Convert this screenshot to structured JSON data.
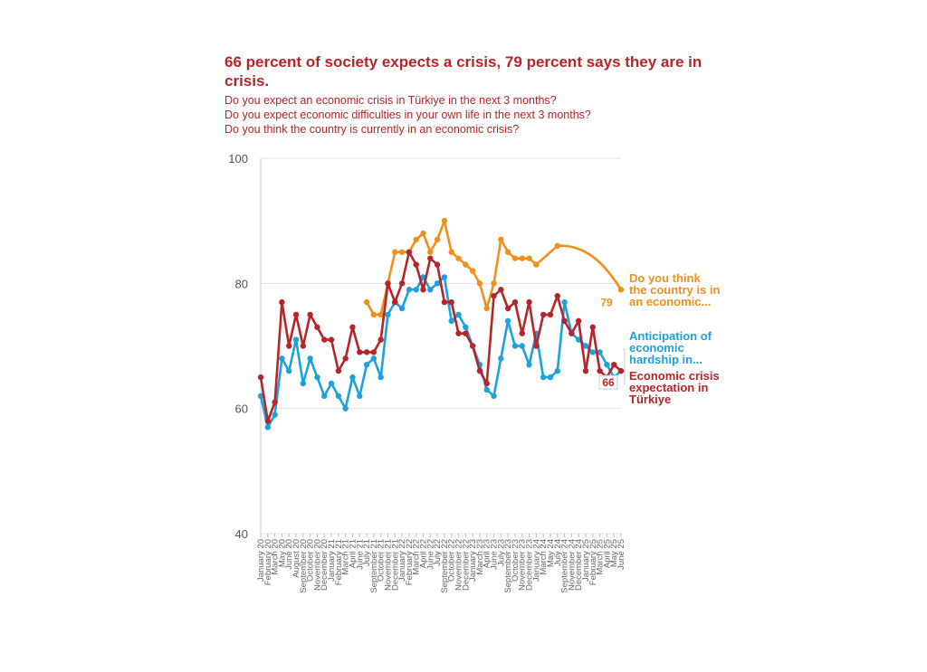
{
  "chart_data": {
    "type": "line",
    "title": "66 percent of society expects a crisis, 79 percent says they are in crisis.",
    "subtitle_lines": [
      "Do you expect an economic crisis in Türkiye in the next 3 months?",
      "Do you expect economic difficulties in your own life in the next 3 months?",
      "Do you think the country is currently in an economic crisis?"
    ],
    "ylim": [
      40,
      100
    ],
    "yticks": [
      "40",
      "60",
      "80",
      "100"
    ],
    "x_labels": [
      "January 20",
      "February 20",
      "March 20",
      "May 20",
      "June 20",
      "August 20",
      "September 20",
      "October 20",
      "November 20",
      "December 20",
      "January 21",
      "February 21",
      "March 21",
      "April 21",
      "June 21",
      "July 21",
      "September 21",
      "October 21",
      "November 21",
      "December 21",
      "January 22",
      "February 22",
      "March 22",
      "April 22",
      "June 22",
      "July 22",
      "September 22",
      "October 22",
      "November 22",
      "December 22",
      "January 23",
      "March 23",
      "April 23",
      "June 23",
      "July 23",
      "September 23",
      "October 23",
      "November 23",
      "December 23",
      "January 24",
      "March 24",
      "May 24",
      "July 24",
      "September 24",
      "November 24",
      "December 24",
      "January 25",
      "February 25",
      "March 25",
      "April 25",
      "May 25",
      "June 25"
    ],
    "series": [
      {
        "name": "Economic crisis expectation in Türkiye",
        "color": "#b5252a",
        "values": [
          65,
          58,
          61,
          77,
          70,
          75,
          70,
          75,
          73,
          71,
          71,
          66,
          68,
          73,
          69,
          69,
          69,
          71,
          80,
          77,
          80,
          85,
          83,
          79,
          84,
          83,
          77,
          77,
          72,
          72,
          70,
          66,
          64,
          78,
          79,
          76,
          77,
          72,
          77,
          70,
          75,
          75,
          78,
          74,
          72,
          74,
          66,
          73,
          66,
          65,
          67,
          66
        ]
      },
      {
        "name": "Anticipation of economic hardship in...",
        "color": "#1ba1dc",
        "values": [
          62,
          57,
          59,
          68,
          66,
          71,
          64,
          68,
          65,
          62,
          64,
          62,
          60,
          65,
          62,
          67,
          68,
          65,
          75,
          77,
          76,
          79,
          79,
          81,
          79,
          80,
          81,
          74,
          75,
          73,
          70,
          67,
          63,
          62,
          68,
          74,
          70,
          70,
          67,
          72,
          65,
          65,
          66,
          77,
          72,
          71,
          70,
          69,
          69,
          67,
          65,
          66
        ]
      },
      {
        "name": "Do you think the country is in an economic...",
        "color": "#f28e1b",
        "values": [
          null,
          null,
          null,
          null,
          null,
          null,
          null,
          null,
          null,
          null,
          null,
          null,
          null,
          null,
          null,
          77,
          75,
          75,
          80,
          85,
          85,
          85,
          87,
          88,
          85,
          87,
          90,
          85,
          84,
          83,
          82,
          80,
          76,
          80,
          87,
          85,
          84,
          84,
          84,
          83,
          86,
          79
        ]
      }
    ],
    "x_index": {
      "crisis_series_x": [
        0,
        1,
        2,
        3,
        4,
        5,
        6,
        7,
        8,
        9,
        10,
        11,
        12,
        13,
        14,
        15,
        16,
        17,
        18,
        19,
        20,
        21,
        22,
        23,
        24,
        25,
        26,
        27,
        28,
        29,
        30,
        31,
        32,
        33,
        34,
        35,
        36,
        37,
        38,
        39,
        40,
        41,
        42,
        43,
        44,
        45,
        46,
        47,
        48,
        49,
        50,
        51
      ],
      "orange_x": [
        null,
        null,
        null,
        null,
        null,
        null,
        null,
        null,
        null,
        null,
        null,
        null,
        null,
        null,
        null,
        15,
        16,
        17,
        18,
        19,
        20,
        21,
        22,
        23,
        24,
        25,
        26,
        27,
        28,
        29,
        30,
        31,
        32,
        33,
        34,
        35,
        36,
        37,
        38,
        39,
        42,
        51
      ]
    },
    "end_labels": {
      "orange_value": "79",
      "red_value": "66"
    },
    "legend_labels": [
      {
        "text": "Do you think\nthe country is in\nan economic...",
        "color": "#f28e1b"
      },
      {
        "text": "Anticipation of\neconomic\nhardship in...",
        "color": "#1ba1dc"
      },
      {
        "text": "Economic crisis\nexpectation in\nTürkiye",
        "color": "#b5252a"
      }
    ]
  }
}
